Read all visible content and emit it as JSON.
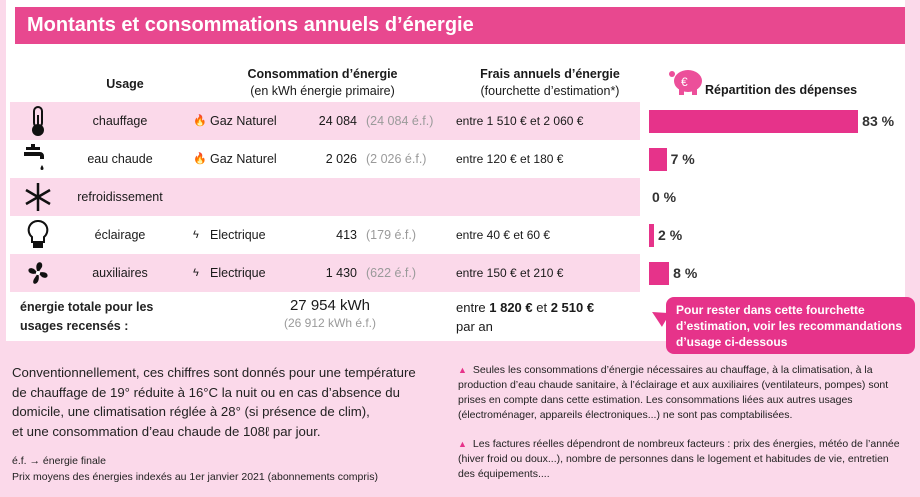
{
  "title": "Montants et consommations annuels d’énergie",
  "headers": {
    "usage": "Usage",
    "consumption": "Consommation d’énergie",
    "consumption_sub": "(en kWh énergie primaire)",
    "fees": "Frais annuels d’énergie",
    "fees_sub": "(fourchette d’estimation*)",
    "distribution": "Répartition des dépenses"
  },
  "accent_color": "#e6338a",
  "rows": [
    {
      "icon": "thermometer-icon",
      "usage": "chauffage",
      "energy_icon": "flame-icon",
      "energy": "Gaz Naturel",
      "kwh": "24 084",
      "ef": "(24 084 é.f.)",
      "fees": "entre 1 510 € et 2 060 €",
      "percent": 83,
      "percent_label": "83 %"
    },
    {
      "icon": "faucet-icon",
      "usage": "eau chaude",
      "energy_icon": "flame-icon",
      "energy": "Gaz Naturel",
      "kwh": "2 026",
      "ef": "(2 026 é.f.)",
      "fees": "entre 120 € et 180 €",
      "percent": 7,
      "percent_label": "7 %"
    },
    {
      "icon": "snowflake-icon",
      "usage": "refroidissement",
      "energy_icon": "",
      "energy": "",
      "kwh": "",
      "ef": "",
      "fees": "",
      "percent": 0,
      "percent_label": "0 %"
    },
    {
      "icon": "lightbulb-icon",
      "usage": "éclairage",
      "energy_icon": "bolt-icon",
      "energy": "Electrique",
      "kwh": "413",
      "ef": "(179 é.f.)",
      "fees": "entre 40 € et 60 €",
      "percent": 2,
      "percent_label": "2 %"
    },
    {
      "icon": "fan-icon",
      "usage": "auxiliaires",
      "energy_icon": "bolt-icon",
      "energy": "Electrique",
      "kwh": "1 430",
      "ef": "(622 é.f.)",
      "fees": "entre 150 € et 210 €",
      "percent": 8,
      "percent_label": "8 %"
    }
  ],
  "total": {
    "label_line1": "énergie totale pour les",
    "label_line2": "usages recensés :",
    "kwh": "27 954 kWh",
    "ef": "(26 912 kWh é.f.)",
    "fees_prefix": "entre ",
    "fees_low": "1 820 €",
    "fees_mid": " et ",
    "fees_high": "2 510 €",
    "fees_suffix": "par an"
  },
  "callout": "Pour rester dans cette fourchette d’estimation, voir les recommandations d’usage ci-dessous",
  "footer_left": {
    "paragraph": [
      "Conventionnellement, ces chiffres sont donnés pour une température",
      "de chauffage de 19° réduite à 16°C la nuit ou en cas d’absence du",
      "domicile, une climatisation réglée à 28° (si présence de clim),",
      "et une consommation d’eau chaude de 108ℓ par jour."
    ],
    "ef_legend": "é.f. → énergie finale",
    "prices": "Prix moyens des énergies indexés au  1er janvier 2021 (abonnements compris)"
  },
  "footer_right": {
    "note1": "Seules les consommations d’énergie nécessaires au chauffage, à la climatisation, à la production d’eau chaude sanitaire, à l’éclairage et aux auxiliaires (ventilateurs, pompes) sont prises en compte dans cette estimation. Les consommations liées aux autres usages (électroménager, appareils électroniques...) ne sont pas comptabilisées.",
    "note2": "Les factures réelles dépendront de nombreux facteurs : prix des énergies, météo de l’année (hiver froid ou doux...), nombre de personnes dans le logement et habitudes de vie, entretien des équipements...."
  }
}
